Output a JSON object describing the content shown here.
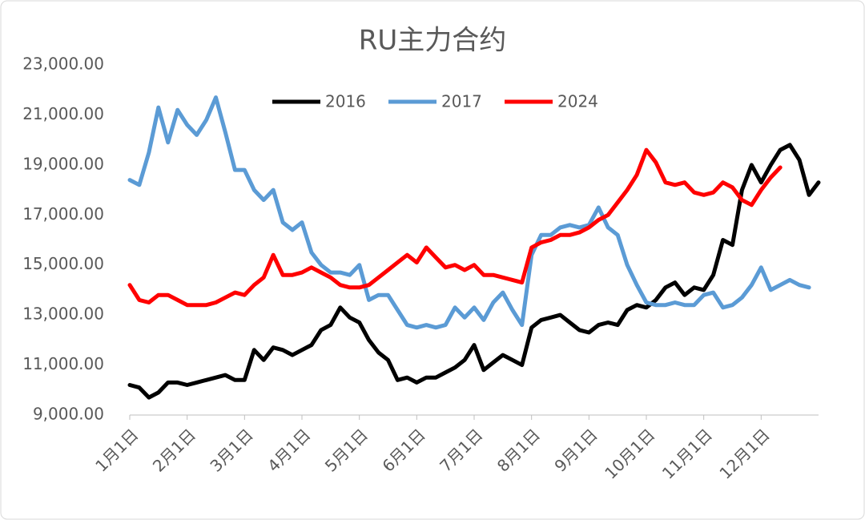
{
  "chart_data": {
    "type": "line",
    "title": "RU主力合约",
    "categories": [
      "1月1日",
      null,
      null,
      null,
      null,
      null,
      "2月1日",
      null,
      null,
      null,
      null,
      null,
      "3月1日",
      null,
      null,
      null,
      null,
      null,
      "4月1日",
      null,
      null,
      null,
      null,
      null,
      "5月1日",
      null,
      null,
      null,
      null,
      null,
      "6月1日",
      null,
      null,
      null,
      null,
      null,
      "7月1日",
      null,
      null,
      null,
      null,
      null,
      "8月1日",
      null,
      null,
      null,
      null,
      null,
      "9月1日",
      null,
      null,
      null,
      null,
      null,
      "10月1日",
      null,
      null,
      null,
      null,
      null,
      "11月1日",
      null,
      null,
      null,
      null,
      null,
      "12月1日",
      null,
      null,
      null,
      null,
      null,
      null
    ],
    "series": [
      {
        "name": "2016",
        "color": "#000000",
        "values": [
          10200,
          10100,
          9700,
          9900,
          10300,
          10300,
          10200,
          10300,
          10400,
          10500,
          10600,
          10400,
          10400,
          11600,
          11200,
          11700,
          11600,
          11400,
          11600,
          11800,
          12400,
          12600,
          13300,
          12900,
          12700,
          12000,
          11500,
          11200,
          10400,
          10500,
          10300,
          10500,
          10500,
          10700,
          10900,
          11200,
          11800,
          10800,
          11100,
          11400,
          11200,
          11000,
          12500,
          12800,
          12900,
          13000,
          12700,
          12400,
          12300,
          12600,
          12700,
          12600,
          13200,
          13400,
          13300,
          13600,
          14100,
          14300,
          13800,
          14100,
          14000,
          14600,
          16000,
          15800,
          18000,
          19000,
          18300,
          19000,
          19600,
          19800,
          19200,
          17800,
          18300
        ]
      },
      {
        "name": "2017",
        "color": "#5b9bd5",
        "values": [
          18400,
          18200,
          19500,
          21300,
          19900,
          21200,
          20600,
          20200,
          20800,
          21700,
          20300,
          18800,
          18800,
          18000,
          17600,
          18000,
          16700,
          16400,
          16700,
          15500,
          15000,
          14700,
          14700,
          14600,
          15000,
          13600,
          13800,
          13800,
          13200,
          12600,
          12500,
          12600,
          12500,
          12600,
          13300,
          12900,
          13300,
          12800,
          13500,
          13900,
          13200,
          12600,
          15400,
          16200,
          16200,
          16500,
          16600,
          16500,
          16600,
          17300,
          16500,
          16200,
          15000,
          14200,
          13500,
          13400,
          13400,
          13500,
          13400,
          13400,
          13800,
          13900,
          13300,
          13400,
          13700,
          14200,
          14900,
          14000,
          14200,
          14400,
          14200,
          14100,
          null
        ]
      },
      {
        "name": "2024",
        "color": "#ff0000",
        "values": [
          14200,
          13600,
          13500,
          13800,
          13800,
          13600,
          13400,
          13400,
          13400,
          13500,
          13700,
          13900,
          13800,
          14200,
          14500,
          15400,
          14600,
          14600,
          14700,
          14900,
          14700,
          14500,
          14200,
          14100,
          14100,
          14200,
          14500,
          14800,
          15100,
          15400,
          15100,
          15700,
          15300,
          14900,
          15000,
          14800,
          15000,
          14600,
          14600,
          14500,
          14400,
          14300,
          15700,
          15900,
          16000,
          16200,
          16200,
          16300,
          16500,
          16800,
          17000,
          17500,
          18000,
          18600,
          19600,
          19100,
          18300,
          18200,
          18300,
          17900,
          17800,
          17900,
          18300,
          18100,
          17600,
          17400,
          18000,
          18500,
          18900,
          null,
          null,
          null,
          null
        ]
      }
    ],
    "ylim": [
      9000,
      23000
    ],
    "yticks": [
      {
        "value": 9000,
        "label": "9,000.00"
      },
      {
        "value": 11000,
        "label": "11,000.00"
      },
      {
        "value": 13000,
        "label": "13,000.00"
      },
      {
        "value": 15000,
        "label": "15,000.00"
      },
      {
        "value": 17000,
        "label": "17,000.00"
      },
      {
        "value": 19000,
        "label": "19,000.00"
      },
      {
        "value": 21000,
        "label": "21,000.00"
      },
      {
        "value": 23000,
        "label": "23,000.00"
      }
    ],
    "grid": false,
    "legend": "top"
  }
}
